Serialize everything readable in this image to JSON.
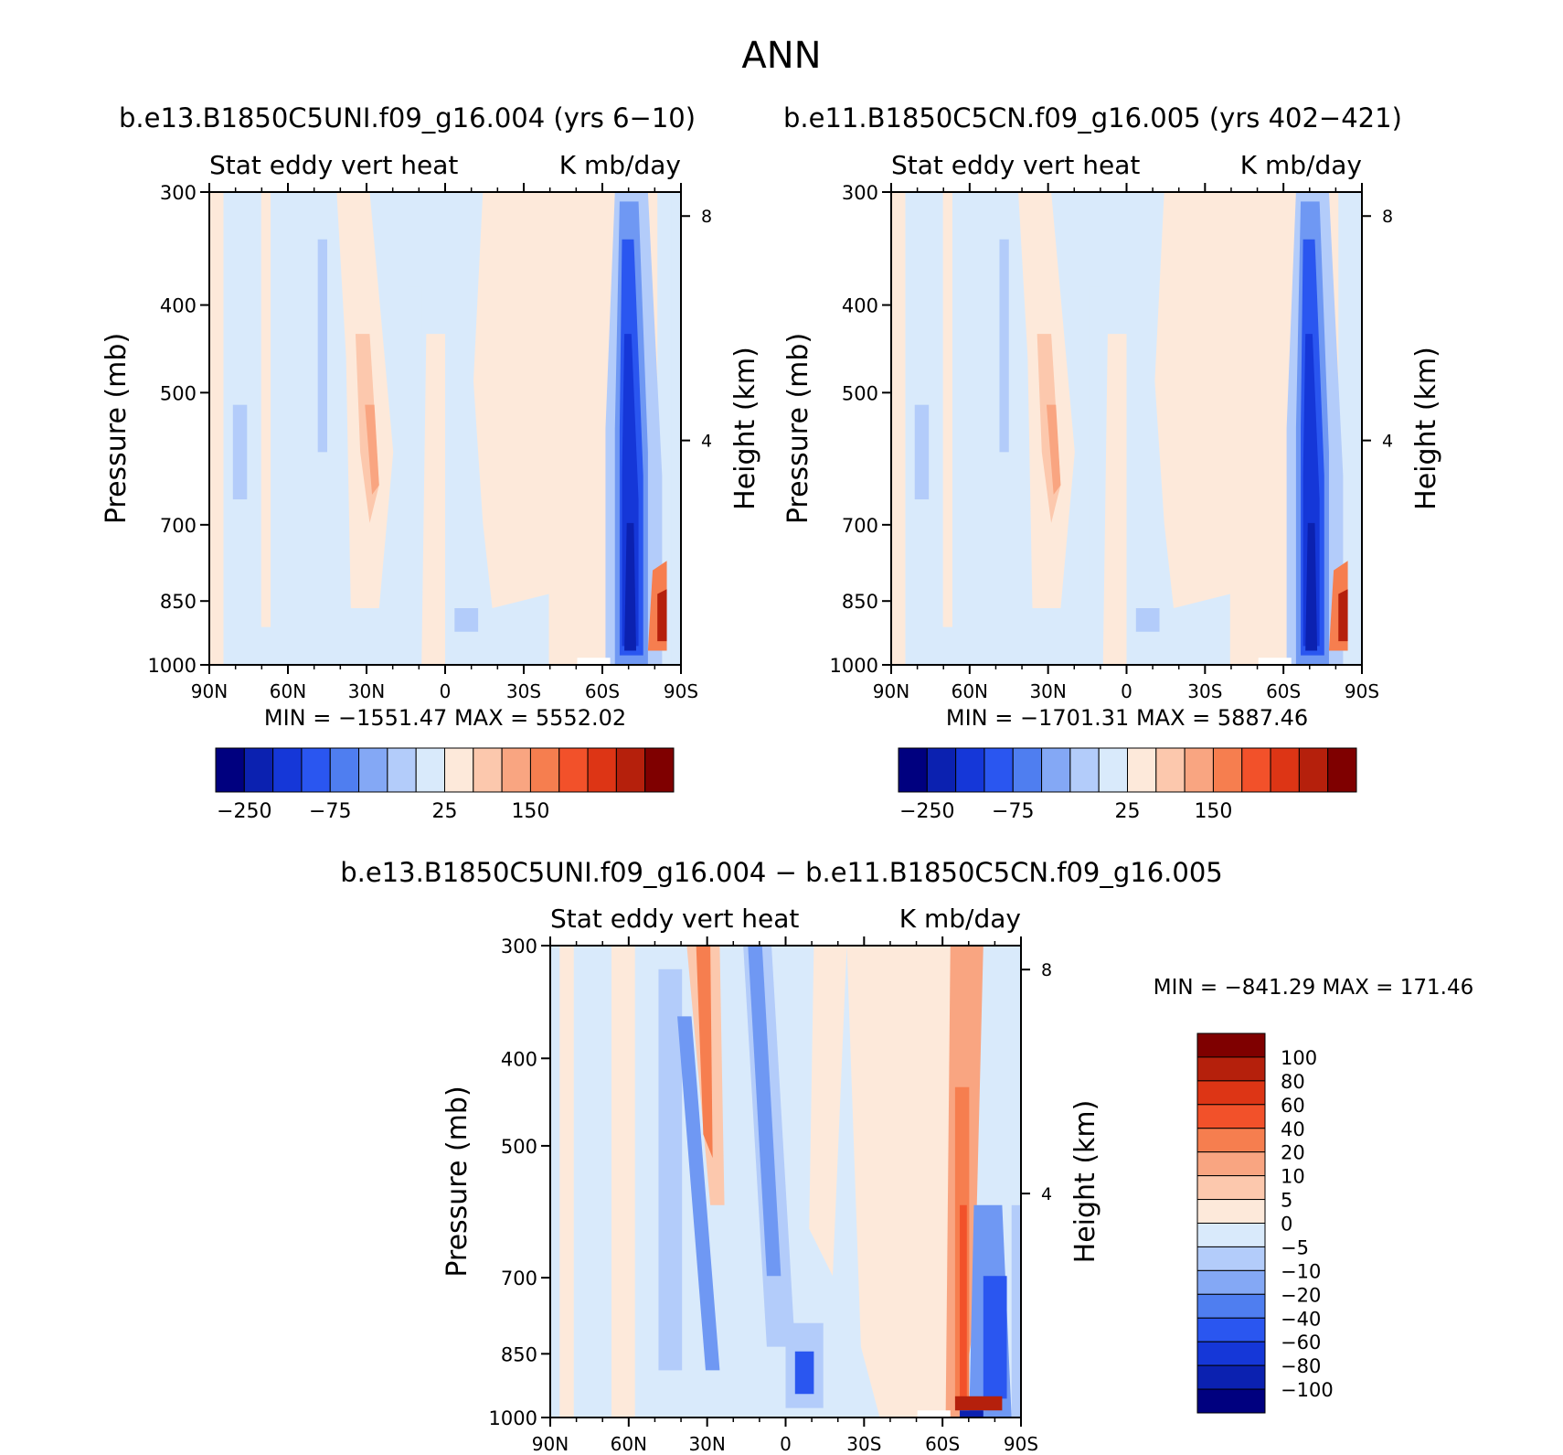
{
  "page_title": "ANN",
  "chart_data": [
    {
      "type": "heatmap",
      "title": "b.e13.B1850C5UNI.f09_g16.004 (yrs 6−10)",
      "left_string": "Stat eddy vert heat",
      "right_string": "K mb/day",
      "xlabel": "",
      "ylabel": "Pressure (mb)",
      "y2label": "Height (km)",
      "x_ticks": [
        "90N",
        "60N",
        "30N",
        "0",
        "30S",
        "60S",
        "90S"
      ],
      "y_ticks": [
        "300",
        "400",
        "500",
        "700",
        "850",
        "1000"
      ],
      "y_tick_values": [
        300,
        400,
        500,
        700,
        850,
        1000
      ],
      "y2_ticks": [
        "8",
        "4"
      ],
      "y2_tick_values": [
        8,
        4
      ],
      "ylim": [
        1000,
        300
      ],
      "xlim": [
        90,
        -90
      ],
      "stats": "MIN = −1551.47   MAX = 5552.02",
      "colorbar_labels": [
        "−250",
        "−75",
        "25",
        "150"
      ],
      "colorbar_colors": [
        "#00007f",
        "#0b21b0",
        "#1537d8",
        "#2a56f0",
        "#4f7ef0",
        "#84a8f5",
        "#b3ccfa",
        "#d9eafb",
        "#fde9da",
        "#fcc8ad",
        "#f9a581",
        "#f67e4f",
        "#f2512a",
        "#dd3515",
        "#b5200c",
        "#7f0000"
      ],
      "band_regions": [
        {
          "x0": 90,
          "x1": 85,
          "level": "pos1"
        },
        {
          "x0": 85,
          "x1": 65,
          "level": "neg1"
        },
        {
          "x0": 65,
          "x1": 40,
          "level": "neg1"
        },
        {
          "x0": 40,
          "x1": 25,
          "level": "pos1"
        },
        {
          "x0": 25,
          "x1": 2,
          "level": "neg1"
        },
        {
          "x0": 2,
          "x1": -60,
          "level": "pos1"
        },
        {
          "x0": -60,
          "x1": -80,
          "level": "neg5"
        },
        {
          "x0": -80,
          "x1": -90,
          "level": "mix"
        }
      ]
    },
    {
      "type": "heatmap",
      "title": "b.e11.B1850C5CN.f09_g16.005 (yrs 402−421)",
      "left_string": "Stat eddy vert heat",
      "right_string": "K mb/day",
      "xlabel": "",
      "ylabel": "Pressure (mb)",
      "y2label": "Height (km)",
      "x_ticks": [
        "90N",
        "60N",
        "30N",
        "0",
        "30S",
        "60S",
        "90S"
      ],
      "y_ticks": [
        "300",
        "400",
        "500",
        "700",
        "850",
        "1000"
      ],
      "y_tick_values": [
        300,
        400,
        500,
        700,
        850,
        1000
      ],
      "y2_ticks": [
        "8",
        "4"
      ],
      "y2_tick_values": [
        8,
        4
      ],
      "ylim": [
        1000,
        300
      ],
      "xlim": [
        90,
        -90
      ],
      "stats": "MIN = −1701.31   MAX = 5887.46",
      "colorbar_labels": [
        "−250",
        "−75",
        "25",
        "150"
      ],
      "colorbar_colors": [
        "#00007f",
        "#0b21b0",
        "#1537d8",
        "#2a56f0",
        "#4f7ef0",
        "#84a8f5",
        "#b3ccfa",
        "#d9eafb",
        "#fde9da",
        "#fcc8ad",
        "#f9a581",
        "#f67e4f",
        "#f2512a",
        "#dd3515",
        "#b5200c",
        "#7f0000"
      ]
    },
    {
      "type": "heatmap",
      "title": "b.e13.B1850C5UNI.f09_g16.004 − b.e11.B1850C5CN.f09_g16.005",
      "left_string": "Stat eddy vert heat",
      "right_string": "K mb/day",
      "xlabel": "",
      "ylabel": "Pressure (mb)",
      "y2label": "Height (km)",
      "x_ticks": [
        "90N",
        "60N",
        "30N",
        "0",
        "30S",
        "60S",
        "90S"
      ],
      "y_ticks": [
        "300",
        "400",
        "500",
        "700",
        "850",
        "1000"
      ],
      "y_tick_values": [
        300,
        400,
        500,
        700,
        850,
        1000
      ],
      "y2_ticks": [
        "8",
        "4"
      ],
      "y2_tick_values": [
        8,
        4
      ],
      "ylim": [
        1000,
        300
      ],
      "xlim": [
        90,
        -90
      ],
      "stats": "MIN = −841.29   MAX = 171.46",
      "colorbar_labels": [
        "100",
        "80",
        "60",
        "40",
        "20",
        "10",
        "5",
        "0",
        "−5",
        "−10",
        "−20",
        "−40",
        "−60",
        "−80",
        "−100"
      ],
      "colorbar_colors": [
        "#7f0000",
        "#b5200c",
        "#dd3515",
        "#f2512a",
        "#f67e4f",
        "#f9a581",
        "#fcc8ad",
        "#fde9da",
        "#d9eafb",
        "#b3ccfa",
        "#84a8f5",
        "#4f7ef0",
        "#2a56f0",
        "#1537d8",
        "#0b21b0",
        "#00007f"
      ]
    }
  ]
}
